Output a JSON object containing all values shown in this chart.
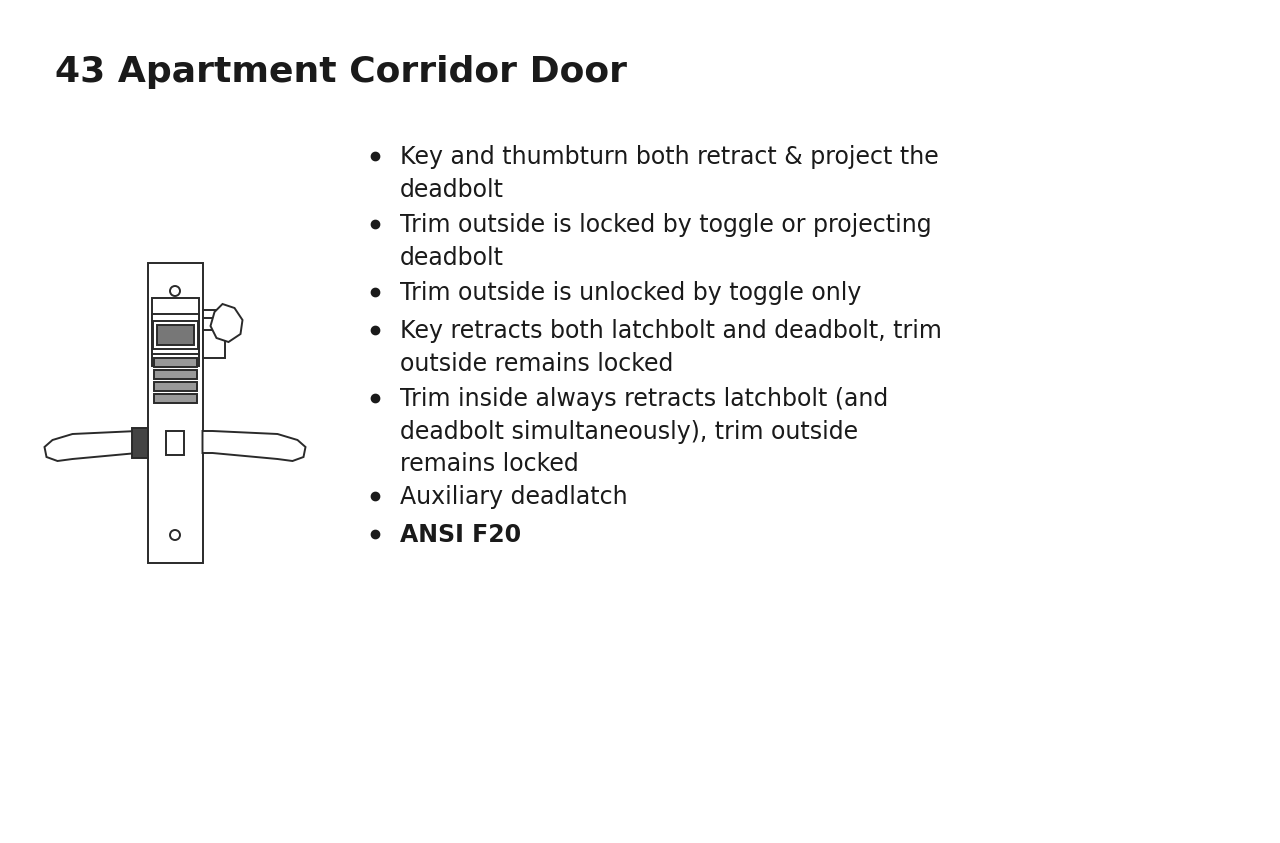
{
  "title": "43 Apartment Corridor Door",
  "background_color": "#ffffff",
  "text_color": "#1a1a1a",
  "title_fontsize": 26,
  "bullet_fontsize": 17,
  "bullets": [
    "Key and thumbturn both retract & project the\ndeadbolt",
    "Trim outside is locked by toggle or projecting\ndeadbolt",
    "Trim outside is unlocked by toggle only",
    "Key retracts both latchbolt and deadbolt, trim\noutside remains locked",
    "Trim inside always retracts latchbolt (and\ndeadbolt simultaneously), trim outside\nremains locked",
    "Auxiliary deadlatch",
    "ANSI F20"
  ],
  "bullet_bold": [
    false,
    false,
    false,
    false,
    false,
    false,
    true
  ],
  "line_color": "#2a2a2a",
  "line_width": 1.4
}
